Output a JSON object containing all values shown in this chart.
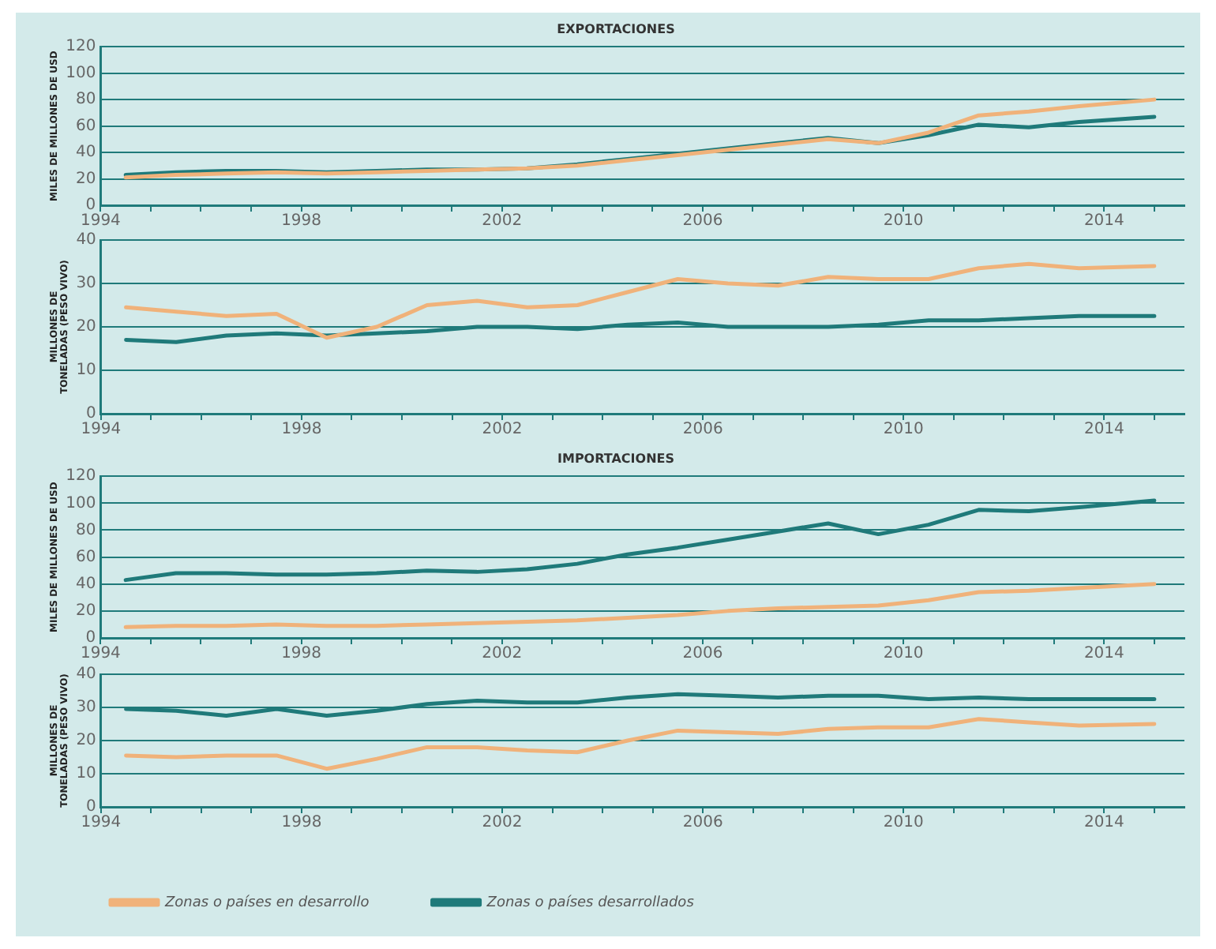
{
  "chart_data": [
    {
      "type": "line",
      "title": "EXPORTACIONES",
      "ylabel": "MILES DE MILLONES DE USD",
      "x": [
        1994.5,
        1995.5,
        1996.5,
        1997.5,
        1998.5,
        1999.5,
        2000.5,
        2001.5,
        2002.5,
        2003.5,
        2004.5,
        2005.5,
        2006.5,
        2007.5,
        2008.5,
        2009.5,
        2010.5,
        2011.5,
        2012.5,
        2013.5,
        2015
      ],
      "series": [
        {
          "color": "#f0b27a",
          "values": [
            21,
            23,
            24,
            25,
            24,
            25,
            26,
            27,
            28,
            30,
            34,
            38,
            42,
            46,
            50,
            47,
            55,
            68,
            71,
            75,
            80
          ]
        },
        {
          "color": "#1f7a7a",
          "values": [
            23,
            25,
            26,
            26,
            25,
            26,
            27,
            27,
            28,
            31,
            35,
            39,
            43,
            47,
            51,
            47,
            53,
            61,
            59,
            63,
            67
          ]
        }
      ],
      "xlim": [
        1994,
        2015.6
      ],
      "xticks": [
        1994,
        {
          "value": 1995,
          "label": null
        },
        {
          "value": 1996,
          "label": null
        },
        {
          "value": 1997,
          "label": null
        },
        1998,
        {
          "value": 1999,
          "label": null
        },
        {
          "value": 2000,
          "label": null
        },
        {
          "value": 2001,
          "label": null
        },
        2002,
        {
          "value": 2003,
          "label": null
        },
        {
          "value": 2004,
          "label": null
        },
        {
          "value": 2005,
          "label": null
        },
        2006,
        {
          "value": 2007,
          "label": null
        },
        {
          "value": 2008,
          "label": null
        },
        {
          "value": 2009,
          "label": null
        },
        2010,
        {
          "value": 2011,
          "label": null
        },
        {
          "value": 2012,
          "label": null
        },
        {
          "value": 2013,
          "label": null
        },
        2014,
        {
          "value": 2015,
          "label": null
        }
      ],
      "ylim": [
        0,
        120
      ],
      "yticks": [
        0,
        20,
        40,
        60,
        80,
        100,
        120
      ],
      "grid": "y",
      "legend": false,
      "marker": "none",
      "line_style": "solid"
    },
    {
      "type": "line",
      "ylabel": "MILLONES DE TONELADAS (PESO VIVO)",
      "x": [
        1994.5,
        1995.5,
        1996.5,
        1997.5,
        1998.5,
        1999.5,
        2000.5,
        2001.5,
        2002.5,
        2003.5,
        2004.5,
        2005.5,
        2006.5,
        2007.5,
        2008.5,
        2009.5,
        2010.5,
        2011.5,
        2012.5,
        2013.5,
        2015
      ],
      "series": [
        {
          "color": "#f0b27a",
          "values": [
            24.5,
            23.5,
            22.5,
            23,
            17.5,
            20,
            25,
            26,
            24.5,
            25,
            28,
            31,
            30,
            29.5,
            31.5,
            31,
            31,
            33.5,
            34.5,
            33.5,
            34
          ]
        },
        {
          "color": "#1f7a7a",
          "values": [
            17,
            16.5,
            18,
            18.5,
            18,
            18.5,
            19,
            20,
            20,
            19.5,
            20.5,
            21,
            20,
            20,
            20,
            20.5,
            21.5,
            21.5,
            22,
            22.5,
            22.5
          ]
        }
      ],
      "xlim": [
        1994,
        2015.6
      ],
      "xticks": [
        1994,
        {
          "value": 1995,
          "label": null
        },
        {
          "value": 1996,
          "label": null
        },
        {
          "value": 1997,
          "label": null
        },
        1998,
        {
          "value": 1999,
          "label": null
        },
        {
          "value": 2000,
          "label": null
        },
        {
          "value": 2001,
          "label": null
        },
        2002,
        {
          "value": 2003,
          "label": null
        },
        {
          "value": 2004,
          "label": null
        },
        {
          "value": 2005,
          "label": null
        },
        2006,
        {
          "value": 2007,
          "label": null
        },
        {
          "value": 2008,
          "label": null
        },
        {
          "value": 2009,
          "label": null
        },
        2010,
        {
          "value": 2011,
          "label": null
        },
        {
          "value": 2012,
          "label": null
        },
        {
          "value": 2013,
          "label": null
        },
        2014,
        {
          "value": 2015,
          "label": null
        }
      ],
      "ylim": [
        0,
        40
      ],
      "yticks": [
        0,
        10,
        20,
        30,
        40
      ],
      "grid": "y",
      "legend": false,
      "marker": "none",
      "line_style": "solid"
    },
    {
      "type": "line",
      "title": "IMPORTACIONES",
      "ylabel": "MILES DE MILLONES DE USD",
      "x": [
        1994.5,
        1995.5,
        1996.5,
        1997.5,
        1998.5,
        1999.5,
        2000.5,
        2001.5,
        2002.5,
        2003.5,
        2004.5,
        2005.5,
        2006.5,
        2007.5,
        2008.5,
        2009.5,
        2010.5,
        2011.5,
        2012.5,
        2013.5,
        2015
      ],
      "series": [
        {
          "color": "#f0b27a",
          "values": [
            8,
            9,
            9,
            10,
            9,
            9,
            10,
            11,
            12,
            13,
            15,
            17,
            20,
            22,
            23,
            24,
            28,
            34,
            35,
            37,
            40
          ]
        },
        {
          "color": "#1f7a7a",
          "values": [
            43,
            48,
            48,
            47,
            47,
            48,
            50,
            49,
            51,
            55,
            62,
            67,
            73,
            79,
            85,
            77,
            84,
            95,
            94,
            97,
            102
          ]
        }
      ],
      "xlim": [
        1994,
        2015.6
      ],
      "xticks": [
        1994,
        {
          "value": 1995,
          "label": null
        },
        {
          "value": 1996,
          "label": null
        },
        {
          "value": 1997,
          "label": null
        },
        1998,
        {
          "value": 1999,
          "label": null
        },
        {
          "value": 2000,
          "label": null
        },
        {
          "value": 2001,
          "label": null
        },
        2002,
        {
          "value": 2003,
          "label": null
        },
        {
          "value": 2004,
          "label": null
        },
        {
          "value": 2005,
          "label": null
        },
        2006,
        {
          "value": 2007,
          "label": null
        },
        {
          "value": 2008,
          "label": null
        },
        {
          "value": 2009,
          "label": null
        },
        2010,
        {
          "value": 2011,
          "label": null
        },
        {
          "value": 2012,
          "label": null
        },
        {
          "value": 2013,
          "label": null
        },
        2014,
        {
          "value": 2015,
          "label": null
        }
      ],
      "ylim": [
        0,
        120
      ],
      "yticks": [
        0,
        20,
        40,
        60,
        80,
        100,
        120
      ],
      "grid": "y",
      "legend": false,
      "marker": "none",
      "line_style": "solid"
    },
    {
      "type": "line",
      "ylabel": "MILLONES DE TONELADAS (PESO VIVO)",
      "x": [
        1994.5,
        1995.5,
        1996.5,
        1997.5,
        1998.5,
        1999.5,
        2000.5,
        2001.5,
        2002.5,
        2003.5,
        2004.5,
        2005.5,
        2006.5,
        2007.5,
        2008.5,
        2009.5,
        2010.5,
        2011.5,
        2012.5,
        2013.5,
        2015
      ],
      "series": [
        {
          "name": "Zonas o países en desarrollo",
          "color": "#f0b27a",
          "values": [
            15.5,
            15,
            15.5,
            15.5,
            11.5,
            14.5,
            18,
            18,
            17,
            16.5,
            20,
            23,
            22.5,
            22,
            23.5,
            24,
            24,
            26.5,
            25.5,
            24.5,
            25
          ]
        },
        {
          "name": "Zonas o países desarrollados",
          "color": "#1f7a7a",
          "values": [
            29.5,
            29,
            27.5,
            29.5,
            27.5,
            29,
            31,
            32,
            31.5,
            31.5,
            33,
            34,
            33.5,
            33,
            33.5,
            33.5,
            32.5,
            33,
            32.5,
            32.5,
            32.5
          ]
        }
      ],
      "xlim": [
        1994,
        2015.6
      ],
      "xticks": [
        1994,
        {
          "value": 1995,
          "label": null
        },
        {
          "value": 1996,
          "label": null
        },
        {
          "value": 1997,
          "label": null
        },
        1998,
        {
          "value": 1999,
          "label": null
        },
        {
          "value": 2000,
          "label": null
        },
        {
          "value": 2001,
          "label": null
        },
        2002,
        {
          "value": 2003,
          "label": null
        },
        {
          "value": 2004,
          "label": null
        },
        {
          "value": 2005,
          "label": null
        },
        2006,
        {
          "value": 2007,
          "label": null
        },
        {
          "value": 2008,
          "label": null
        },
        {
          "value": 2009,
          "label": null
        },
        2010,
        {
          "value": 2011,
          "label": null
        },
        {
          "value": 2012,
          "label": null
        },
        {
          "value": 2013,
          "label": null
        },
        2014,
        {
          "value": 2015,
          "label": null
        }
      ],
      "ylim": [
        0,
        40
      ],
      "yticks": [
        0,
        10,
        20,
        30,
        40
      ],
      "grid": "y",
      "legend": "bottom",
      "marker": "none",
      "line_style": "solid"
    }
  ]
}
